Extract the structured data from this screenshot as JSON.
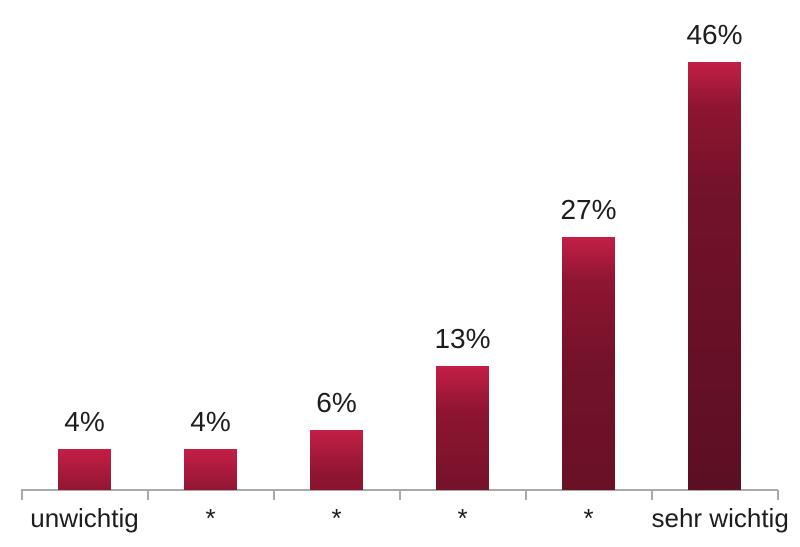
{
  "chart_data": {
    "type": "bar",
    "title": "",
    "xlabel": "",
    "ylabel": "",
    "categories": [
      "unwichtig",
      "*",
      "*",
      "*",
      "*",
      "sehr wichtig"
    ],
    "values": [
      4,
      4,
      6,
      13,
      27,
      46
    ],
    "value_labels": [
      "4%",
      "4%",
      "6%",
      "13%",
      "27%",
      "46%"
    ],
    "unit": "percent",
    "ylim": [
      0,
      46
    ],
    "grid": false,
    "legend": "none",
    "axis": {
      "line_color": "#a9a9a9",
      "tick_count": 7
    },
    "colors": {
      "bar_gradient_top_to_bottom": [
        "#c41f46",
        "#8e1532",
        "#731229",
        "#5c0f23"
      ],
      "label_text": "#1d1d1d",
      "background": "#ffffff"
    }
  }
}
